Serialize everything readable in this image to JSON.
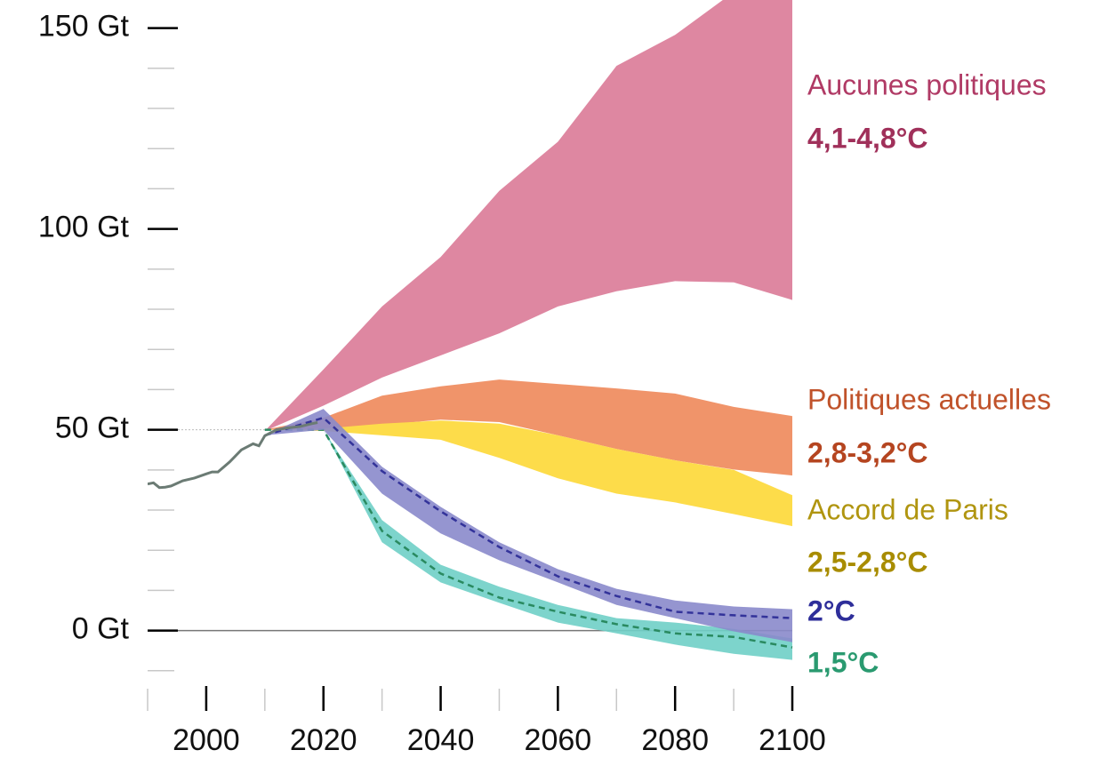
{
  "chart_data": {
    "type": "range-area",
    "xlim": [
      1990,
      2100
    ],
    "xticks": [
      2000,
      2020,
      2040,
      2060,
      2080,
      2100
    ],
    "xticks_minor": [
      1990,
      2010,
      2030,
      2050,
      2070,
      2090
    ],
    "ylim": [
      -20,
      157
    ],
    "yticks": [
      {
        "value": 0,
        "label": "0 Gt"
      },
      {
        "value": 50,
        "label": "50 Gt"
      },
      {
        "value": 100,
        "label": "100 Gt"
      },
      {
        "value": 150,
        "label": "150 Gt"
      }
    ],
    "yticks_minor": [
      -10,
      10,
      20,
      30,
      40,
      60,
      70,
      80,
      90,
      110,
      120,
      130,
      140
    ],
    "history": {
      "color": "#6b7b74",
      "x": [
        1990,
        1991,
        1992,
        1993,
        1994,
        1996,
        1998,
        2000,
        2001,
        2002,
        2004,
        2006,
        2008,
        2009,
        2010,
        2012,
        2014,
        2016,
        2018,
        2019
      ],
      "values": [
        36.5,
        36.8,
        35.6,
        35.7,
        36,
        37.3,
        38,
        39,
        39.5,
        39.5,
        42,
        45,
        46.5,
        46,
        48.5,
        50,
        50.5,
        50.8,
        51.5,
        51.8
      ]
    },
    "x": [
      2010,
      2020,
      2030,
      2040,
      2050,
      2060,
      2070,
      2080,
      2090,
      2100
    ],
    "series": [
      {
        "name": "Aucunes politiques",
        "label": "4,1-4,8°C",
        "color": "#de87a1",
        "name_color": "#b03a65",
        "label_color": "#a0305a",
        "high": [
          49.7,
          65,
          80.7,
          93,
          109.5,
          121.7,
          140.6,
          148.3,
          159,
          165
        ],
        "low": [
          49.7,
          56,
          63,
          68.5,
          74,
          80.7,
          84.5,
          87,
          86.7,
          82.3
        ]
      },
      {
        "name": "Politiques actuelles",
        "label": "2,8-3,2°C",
        "color": "#f0946a",
        "name_color": "#c0522a",
        "label_color": "#b54520",
        "high": [
          50,
          53,
          58.5,
          60.8,
          62.5,
          61.4,
          60.3,
          59,
          55.7,
          53.4
        ],
        "low": [
          50,
          50.3,
          51.2,
          52.5,
          51.9,
          48.6,
          45.2,
          42.4,
          40.1,
          38.6
        ]
      },
      {
        "name": "Accord de Paris",
        "label": "2,5-2,8°C",
        "color": "#fddc4a",
        "name_color": "#b09510",
        "label_color": "#a88c00",
        "high": [
          50,
          50.3,
          51.5,
          52.3,
          51.5,
          48.6,
          45.2,
          42.4,
          40,
          33.7
        ],
        "low": [
          50,
          49.7,
          48.6,
          47.5,
          43,
          37.9,
          34.1,
          31.9,
          29,
          26
        ]
      },
      {
        "label": "1,5°C",
        "color": "#6fcfc6",
        "label_color": "#2a9a70",
        "median_color": "#2a8a60",
        "high": [
          50,
          50,
          27.5,
          16.4,
          10.9,
          6.4,
          3.1,
          2,
          0.4,
          -2
        ],
        "low": [
          50,
          50,
          22,
          12,
          6.9,
          2,
          -0.7,
          -3.5,
          -5.8,
          -7.3
        ],
        "median": [
          50,
          50,
          24.8,
          14.2,
          8.2,
          4.7,
          1.6,
          -0.7,
          -1.6,
          -4.2
        ]
      },
      {
        "label": "2°C",
        "color": "#8a8acb",
        "label_color": "#2e2e9a",
        "median_color": "#33339a",
        "high": [
          48.6,
          55.2,
          40.8,
          30.8,
          22,
          15.3,
          10.4,
          7.5,
          6,
          5.3
        ],
        "low": [
          48.6,
          50,
          34.1,
          24.2,
          17.5,
          12,
          6.4,
          3.1,
          -0.2,
          -2.9
        ],
        "median": [
          48.6,
          53,
          39.7,
          29.7,
          20.8,
          13.5,
          8.6,
          4.7,
          3.8,
          3.1
        ]
      }
    ]
  }
}
